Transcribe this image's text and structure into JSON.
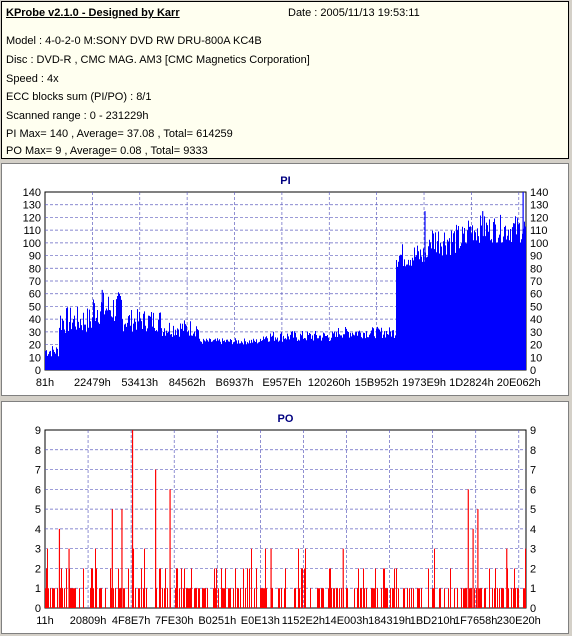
{
  "header": {
    "title": "KProbe v2.1.0 - Designed by Karr",
    "date": "Date : 2005/11/13 19:53:11",
    "model": "Model : 4-0-2-0 M:SONY    DVD RW DRU-800A  KC4B",
    "disc": "Disc : DVD-R , CMC MAG. AM3 [CMC Magnetics Corporation]",
    "speed": "Speed : 4x",
    "ecc": "ECC blocks sum (PI/PO) : 8/1",
    "range": "Scanned range : 0 - 231229h",
    "pi_stats": "PI Max= 140 , Average= 37.08 , Total= 614259",
    "po_stats": "PO Max= 9 , Average= 0.08 , Total= 9333"
  },
  "chart_data": [
    {
      "type": "bar",
      "title": "PI",
      "ylim": [
        0,
        140
      ],
      "yticks": [
        0,
        10,
        20,
        30,
        40,
        50,
        60,
        70,
        80,
        90,
        100,
        110,
        120,
        130,
        140
      ],
      "xtick_labels": [
        "81h",
        "22479h",
        "53413h",
        "84562h",
        "B6937h",
        "E957Eh",
        "120260h",
        "15B952h",
        "1973E9h",
        "1D2824h",
        "20E062h"
      ],
      "grid": true,
      "color": "#0000ff",
      "segments": [
        {
          "x_start": 0.0,
          "x_end": 0.03,
          "min": 10,
          "max": 20
        },
        {
          "x_start": 0.03,
          "x_end": 0.1,
          "min": 28,
          "max": 50
        },
        {
          "x_start": 0.1,
          "x_end": 0.16,
          "min": 35,
          "max": 62
        },
        {
          "x_start": 0.16,
          "x_end": 0.24,
          "min": 30,
          "max": 48
        },
        {
          "x_start": 0.24,
          "x_end": 0.32,
          "min": 26,
          "max": 40
        },
        {
          "x_start": 0.32,
          "x_end": 0.45,
          "min": 20,
          "max": 25
        },
        {
          "x_start": 0.45,
          "x_end": 0.61,
          "min": 22,
          "max": 31
        },
        {
          "x_start": 0.61,
          "x_end": 0.73,
          "min": 25,
          "max": 34
        },
        {
          "x_start": 0.73,
          "x_end": 0.8,
          "min": 80,
          "max": 100
        },
        {
          "x_start": 0.8,
          "x_end": 0.88,
          "min": 90,
          "max": 115
        },
        {
          "x_start": 0.88,
          "x_end": 1.0,
          "min": 100,
          "max": 122
        }
      ],
      "spikes": [
        {
          "x": 0.119,
          "value": 63
        },
        {
          "x": 0.79,
          "value": 125
        },
        {
          "x": 0.91,
          "value": 125
        },
        {
          "x": 0.994,
          "value": 140
        }
      ]
    },
    {
      "type": "bar",
      "title": "PO",
      "ylim": [
        0,
        9
      ],
      "yticks": [
        0,
        1,
        2,
        3,
        4,
        5,
        6,
        7,
        8,
        9
      ],
      "xtick_labels": [
        "11h",
        "20809h",
        "4F8E7h",
        "7FE30h",
        "B0251h",
        "E0E13h",
        "1152E2h",
        "14E003h",
        "184319h",
        "1BD210h",
        "1F7658h",
        "230E20h"
      ],
      "grid": true,
      "color": "#ff0000",
      "spikes": [
        {
          "x": 0.03,
          "value": 4
        },
        {
          "x": 0.14,
          "value": 5
        },
        {
          "x": 0.16,
          "value": 5
        },
        {
          "x": 0.182,
          "value": 9
        },
        {
          "x": 0.23,
          "value": 7
        },
        {
          "x": 0.26,
          "value": 6
        },
        {
          "x": 0.88,
          "value": 6
        },
        {
          "x": 0.89,
          "value": 4
        },
        {
          "x": 0.9,
          "value": 5
        },
        {
          "x": 0.05,
          "value": 3
        },
        {
          "x": 0.47,
          "value": 3
        },
        {
          "x": 0.62,
          "value": 3
        },
        {
          "x": 0.96,
          "value": 3
        }
      ]
    }
  ]
}
